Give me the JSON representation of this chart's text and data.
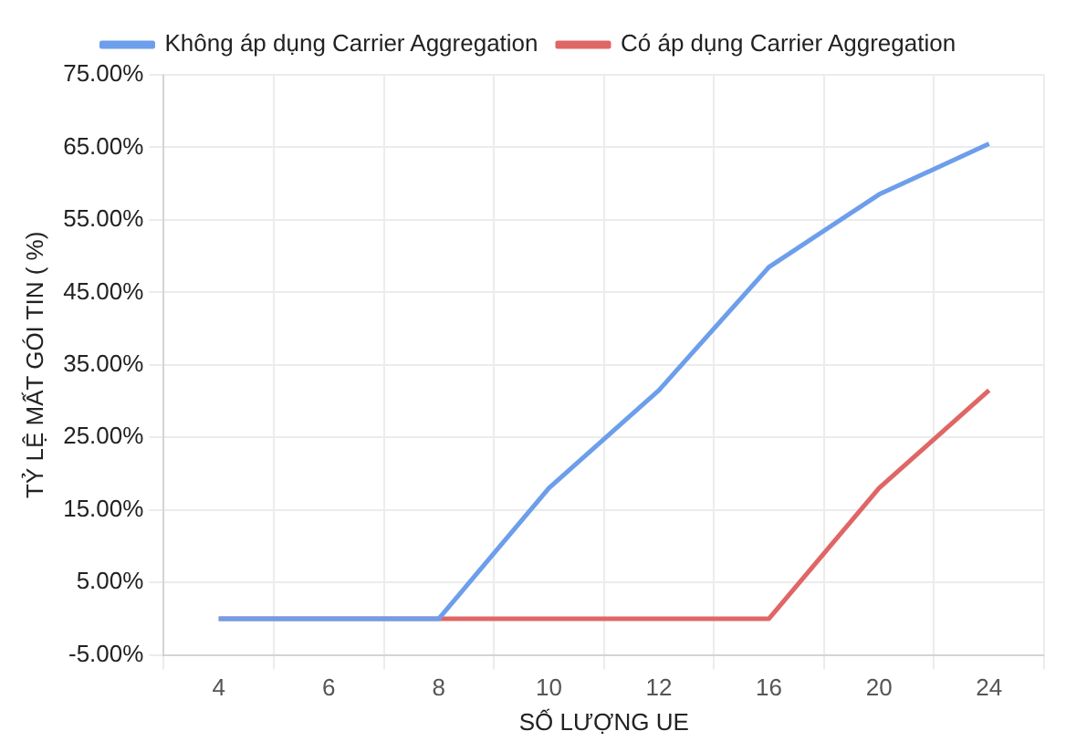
{
  "chart_data": {
    "type": "line",
    "xlabel": "SỐ LƯỢNG UE",
    "ylabel": "TỶ LỆ MẤT GÓI TIN ( %)",
    "categories": [
      "4",
      "6",
      "8",
      "10",
      "12",
      "16",
      "20",
      "24"
    ],
    "series": [
      {
        "name": "Không áp dụng Carrier Aggregation",
        "color": "#6d9eeb",
        "values": [
          0,
          0,
          0,
          18,
          31.5,
          48.5,
          58.5,
          65.5
        ]
      },
      {
        "name": "Có áp dụng Carrier Aggregation",
        "color": "#e06666",
        "values": [
          0,
          0,
          0,
          0,
          0,
          0,
          18,
          31.5
        ]
      }
    ],
    "ylim": [
      -5,
      75
    ],
    "yticks": [
      {
        "value": -5,
        "label": "-5.00%"
      },
      {
        "value": 5,
        "label": "5.00%"
      },
      {
        "value": 15,
        "label": "15.00%"
      },
      {
        "value": 25,
        "label": "25.00%"
      },
      {
        "value": 35,
        "label": "35.00%"
      },
      {
        "value": 45,
        "label": "45.00%"
      },
      {
        "value": 55,
        "label": "55.00%"
      },
      {
        "value": 65,
        "label": "65.00%"
      },
      {
        "value": 75,
        "label": "75.00%"
      }
    ],
    "grid": true,
    "legend": "top",
    "marker": "none",
    "line_style": "solid"
  }
}
